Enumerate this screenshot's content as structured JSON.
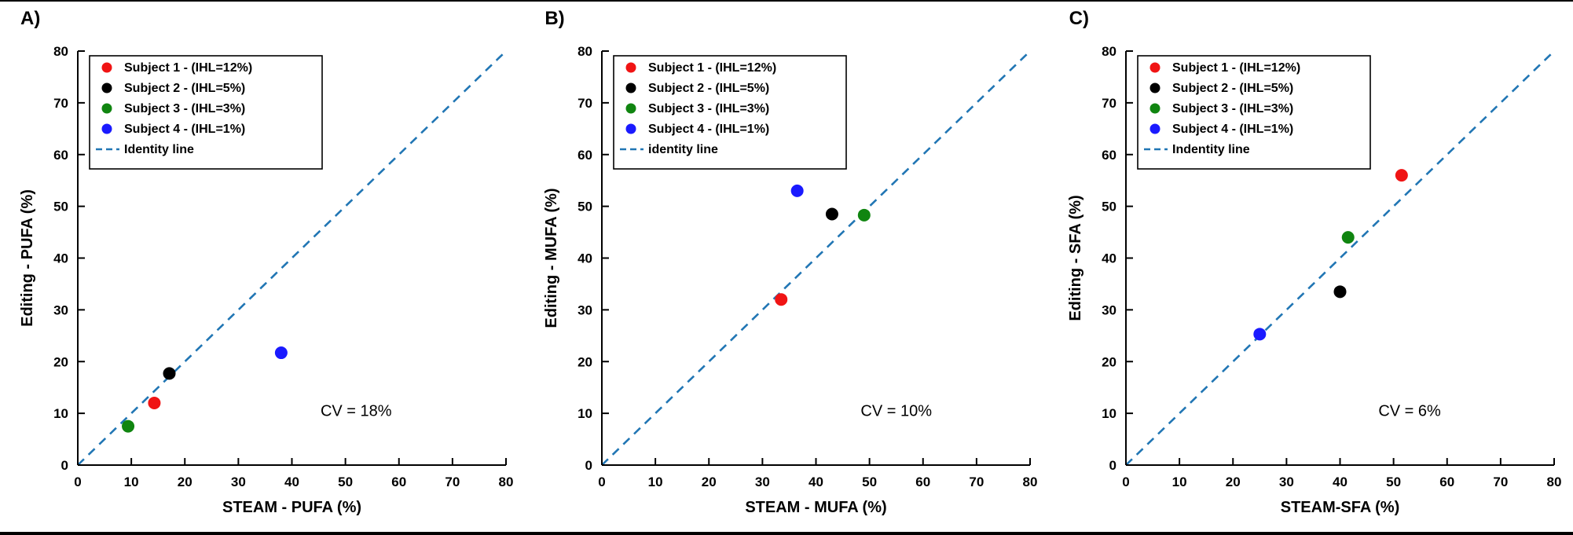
{
  "figure": {
    "background": "#ffffff",
    "frame_color": "#000000"
  },
  "chart_data": [
    {
      "type": "scatter",
      "panel_label": "A)",
      "title": "",
      "xlabel": "STEAM - PUFA (%)",
      "ylabel": "Editing - PUFA (%)",
      "xlim": [
        0,
        80
      ],
      "ylim": [
        0,
        80
      ],
      "xticks": [
        0,
        10,
        20,
        30,
        40,
        50,
        60,
        70,
        80
      ],
      "yticks": [
        0,
        10,
        20,
        30,
        40,
        50,
        60,
        70,
        80
      ],
      "grid": false,
      "legend_position": "top-left",
      "series": [
        {
          "name": "Subject 1 - (IHL=12%)",
          "color": "#f01414",
          "points": [
            [
              14.3,
              12.0
            ]
          ]
        },
        {
          "name": "Subject 2 - (IHL=5%)",
          "color": "#000000",
          "points": [
            [
              17.1,
              17.7
            ]
          ]
        },
        {
          "name": "Subject 3 - (IHL=3%)",
          "color": "#108510",
          "points": [
            [
              9.4,
              7.5
            ]
          ]
        },
        {
          "name": "Subject 4 - (IHL=1%)",
          "color": "#1a1aff",
          "points": [
            [
              38.0,
              21.7
            ]
          ]
        }
      ],
      "identity_line": {
        "label": "Identity line",
        "color": "#2176b4",
        "dashed": true,
        "from": [
          0,
          0
        ],
        "to": [
          80,
          80
        ]
      },
      "annotation": {
        "text": "CV = 18%",
        "x": 52,
        "y": 9.5
      }
    },
    {
      "type": "scatter",
      "panel_label": "B)",
      "title": "",
      "xlabel": "STEAM - MUFA (%)",
      "ylabel": "Editing - MUFA (%)",
      "xlim": [
        0,
        80
      ],
      "ylim": [
        0,
        80
      ],
      "xticks": [
        0,
        10,
        20,
        30,
        40,
        50,
        60,
        70,
        80
      ],
      "yticks": [
        0,
        10,
        20,
        30,
        40,
        50,
        60,
        70,
        80
      ],
      "grid": false,
      "legend_position": "top-left",
      "series": [
        {
          "name": "Subject 1 - (IHL=12%)",
          "color": "#f01414",
          "points": [
            [
              33.5,
              32.0
            ]
          ]
        },
        {
          "name": "Subject 2 - (IHL=5%)",
          "color": "#000000",
          "points": [
            [
              43.0,
              48.5
            ]
          ]
        },
        {
          "name": "Subject 3 - (IHL=3%)",
          "color": "#108510",
          "points": [
            [
              49.0,
              48.3
            ]
          ]
        },
        {
          "name": "Subject 4 - (IHL=1%)",
          "color": "#1a1aff",
          "points": [
            [
              36.5,
              53.0
            ]
          ]
        }
      ],
      "identity_line": {
        "label": "identity line",
        "color": "#2176b4",
        "dashed": true,
        "from": [
          0,
          0
        ],
        "to": [
          80,
          80
        ]
      },
      "annotation": {
        "text": "CV = 10%",
        "x": 55,
        "y": 9.5
      }
    },
    {
      "type": "scatter",
      "panel_label": "C)",
      "title": "",
      "xlabel": "STEAM-SFA (%)",
      "ylabel": "Editing - SFA (%)",
      "xlim": [
        0,
        80
      ],
      "ylim": [
        0,
        80
      ],
      "xticks": [
        0,
        10,
        20,
        30,
        40,
        50,
        60,
        70,
        80
      ],
      "yticks": [
        0,
        10,
        20,
        30,
        40,
        50,
        60,
        70,
        80
      ],
      "grid": false,
      "legend_position": "top-left",
      "series": [
        {
          "name": "Subject 1 - (IHL=12%)",
          "color": "#f01414",
          "points": [
            [
              51.5,
              56.0
            ]
          ]
        },
        {
          "name": "Subject 2 - (IHL=5%)",
          "color": "#000000",
          "points": [
            [
              40.0,
              33.5
            ]
          ]
        },
        {
          "name": "Subject 3 - (IHL=3%)",
          "color": "#108510",
          "points": [
            [
              41.5,
              44.0
            ]
          ]
        },
        {
          "name": "Subject 4 - (IHL=1%)",
          "color": "#1a1aff",
          "points": [
            [
              25.0,
              25.3
            ]
          ]
        }
      ],
      "identity_line": {
        "label": "Indentity line",
        "color": "#2176b4",
        "dashed": true,
        "from": [
          0,
          0
        ],
        "to": [
          80,
          80
        ]
      },
      "annotation": {
        "text": "CV = 6%",
        "x": 53,
        "y": 9.5
      }
    }
  ]
}
